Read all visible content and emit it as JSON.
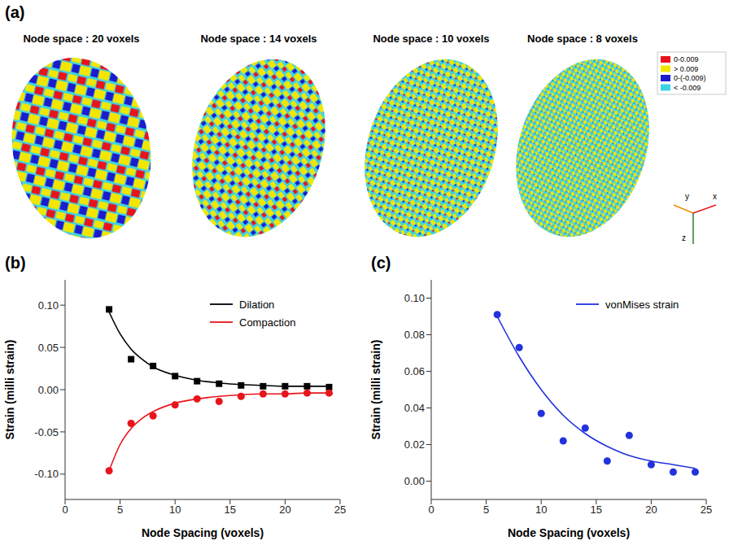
{
  "figure_a": {
    "panel_label": "(a)",
    "panels": [
      {
        "title": "Node space : 20 voxels"
      },
      {
        "title": "Node space : 14 voxels"
      },
      {
        "title": "Node space : 10 voxels"
      },
      {
        "title": "Node space : 8 voxels"
      }
    ],
    "legend": {
      "items": [
        {
          "label": "0-0.009",
          "color": "#e8141c"
        },
        {
          "label": "> 0.009",
          "color": "#f2e600"
        },
        {
          "label": "0-(-0.009)",
          "color": "#1c1ccc"
        },
        {
          "label": "< -0.009",
          "color": "#3cd2e6"
        }
      ]
    },
    "axes": [
      "x",
      "y",
      "z"
    ]
  },
  "chart_data": [
    {
      "type": "scatter",
      "panel_label": "(b)",
      "x_label": "Node Spacing (voxels)",
      "y_label": "Strain (milli strain)",
      "xlim": [
        0,
        25
      ],
      "xticks": [
        0,
        5,
        10,
        15,
        20,
        25
      ],
      "ylim": [
        -0.13,
        0.13
      ],
      "yticks": [
        {
          "value": -0.1,
          "label": "-0.10"
        },
        {
          "value": -0.05,
          "label": "-0.05"
        },
        {
          "value": 0,
          "label": "0.00"
        },
        {
          "value": 0.05,
          "label": "0.05"
        },
        {
          "value": 0.1,
          "label": "0.10"
        }
      ],
      "legend": "upper right",
      "series": [
        {
          "name": "Dilation",
          "color": "#000000",
          "marker": "square",
          "line_style": "solid",
          "x": [
            4,
            6,
            8,
            10,
            12,
            14,
            16,
            18,
            20,
            22,
            24
          ],
          "values": [
            0.095,
            0.036,
            0.028,
            0.016,
            0.01,
            0.007,
            0.005,
            0.004,
            0.004,
            0.004,
            0.003
          ],
          "fit_x": [
            4,
            5,
            6,
            7,
            8,
            10,
            12,
            14,
            16,
            18,
            20,
            22,
            24
          ],
          "fit_values": [
            0.092,
            0.066,
            0.048,
            0.036,
            0.027,
            0.017,
            0.011,
            0.008,
            0.006,
            0.005,
            0.004,
            0.004,
            0.004
          ]
        },
        {
          "name": "Compaction",
          "color": "#e8141c",
          "marker": "circle",
          "line_style": "solid",
          "x": [
            4,
            6,
            8,
            10,
            12,
            14,
            16,
            18,
            20,
            22,
            24
          ],
          "values": [
            -0.096,
            -0.04,
            -0.031,
            -0.018,
            -0.011,
            -0.014,
            -0.008,
            -0.005,
            -0.005,
            -0.004,
            -0.004
          ],
          "fit_x": [
            4,
            5,
            6,
            7,
            8,
            10,
            12,
            14,
            16,
            18,
            20,
            22,
            24
          ],
          "fit_values": [
            -0.096,
            -0.065,
            -0.046,
            -0.034,
            -0.026,
            -0.016,
            -0.011,
            -0.008,
            -0.006,
            -0.005,
            -0.005,
            -0.004,
            -0.004
          ]
        }
      ]
    },
    {
      "type": "scatter",
      "panel_label": "(c)",
      "x_label": "Node Spacing (voxels)",
      "y_label": "Strain (milli strain)",
      "xlim": [
        0,
        25
      ],
      "xticks": [
        0,
        5,
        10,
        15,
        20,
        25
      ],
      "ylim": [
        -0.01,
        0.11
      ],
      "yticks": [
        {
          "value": 0,
          "label": "0.00"
        },
        {
          "value": 0.02,
          "label": "0.02"
        },
        {
          "value": 0.04,
          "label": "0.04"
        },
        {
          "value": 0.06,
          "label": "0.06"
        },
        {
          "value": 0.08,
          "label": "0.08"
        },
        {
          "value": 0.1,
          "label": "0.10"
        }
      ],
      "legend": "upper right",
      "series": [
        {
          "name": "vonMises strain",
          "color": "#2233dd",
          "marker": "circle",
          "line_style": "solid",
          "x": [
            6,
            8,
            10,
            12,
            14,
            16,
            18,
            20,
            22,
            24
          ],
          "values": [
            0.091,
            0.073,
            0.037,
            0.022,
            0.029,
            0.011,
            0.025,
            0.009,
            0.005,
            0.005
          ],
          "fit_x": [
            6,
            8,
            10,
            12,
            14,
            16,
            18,
            20,
            22,
            24
          ],
          "fit_values": [
            0.09,
            0.068,
            0.05,
            0.036,
            0.026,
            0.019,
            0.014,
            0.011,
            0.009,
            0.007
          ]
        }
      ]
    }
  ]
}
